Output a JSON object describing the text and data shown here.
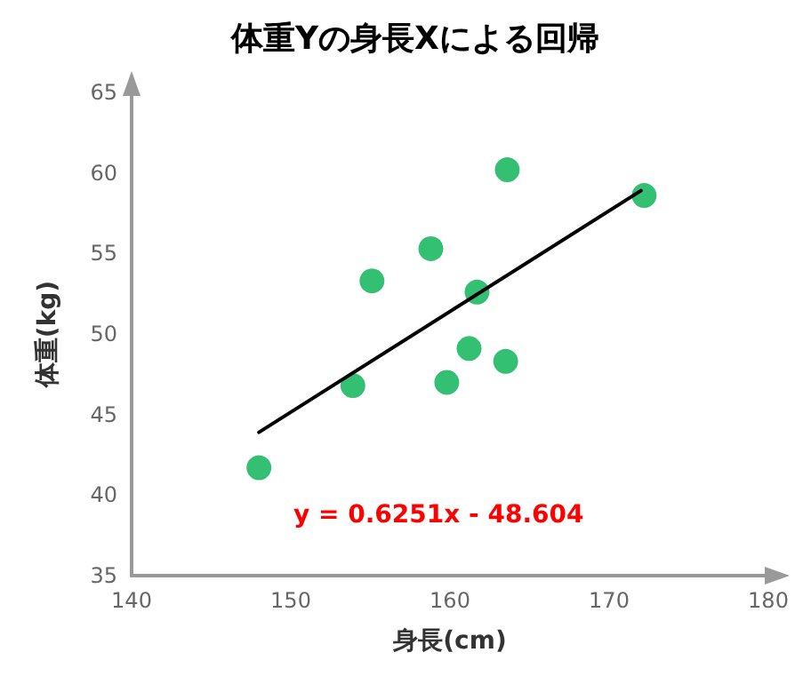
{
  "chart_data": {
    "type": "scatter",
    "title": "体重Yの身長Xによる回帰",
    "xlabel": "身長(cm)",
    "ylabel": "体重(kg)",
    "xlim": [
      140,
      180
    ],
    "xticks": [
      140,
      150,
      160,
      170,
      180
    ],
    "ylim": [
      35,
      65
    ],
    "yticks": [
      35,
      40,
      45,
      50,
      55,
      60,
      65
    ],
    "grid": false,
    "marker": "circle",
    "series": [
      {
        "color": "#00b050",
        "x": [
          148.0,
          153.9,
          155.1,
          158.8,
          159.8,
          161.2,
          161.7,
          163.5,
          163.6,
          172.2
        ],
        "values": [
          41.7,
          46.8,
          53.3,
          55.3,
          47.0,
          49.1,
          52.6,
          48.3,
          60.2,
          58.6
        ]
      },
      {
        "type": "line",
        "color": "#000000",
        "marker": "none",
        "line_style": "solid",
        "x": [
          148,
          172
        ],
        "values": [
          43.9,
          58.9
        ]
      }
    ],
    "annotations": [
      "y = 0.6251x - 48.604"
    ]
  }
}
